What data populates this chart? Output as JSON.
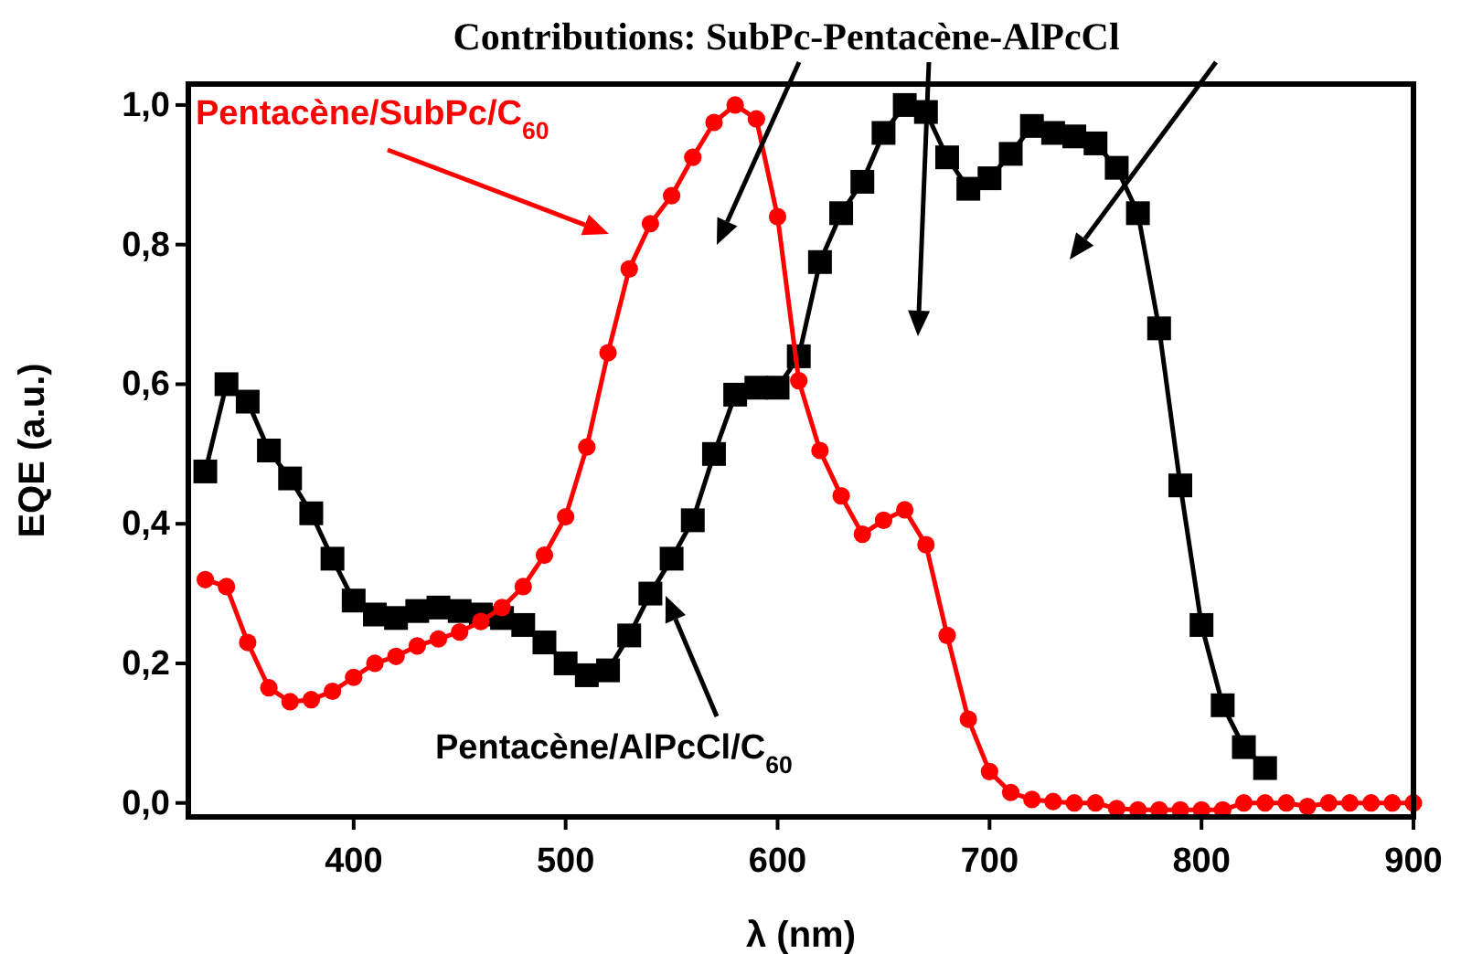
{
  "chart_data": {
    "type": "line",
    "title": "Contributions: SubPc-Pentacène-AlPcCl",
    "xlabel": "λ (nm)",
    "ylabel": "EQE (a.u.)",
    "xlim": [
      322,
      900
    ],
    "xticks": [
      400,
      500,
      600,
      700,
      800,
      900
    ],
    "ylim": [
      -0.02,
      1.03
    ],
    "yticks": [
      {
        "value": 0,
        "label": "0,0"
      },
      {
        "value": 0.2,
        "label": "0,2"
      },
      {
        "value": 0.4,
        "label": "0,4"
      },
      {
        "value": 0.6,
        "label": "0,6"
      },
      {
        "value": 0.8,
        "label": "0,8"
      },
      {
        "value": 1,
        "label": "1,0"
      }
    ],
    "grid": false,
    "legend": false,
    "line_style": "solid",
    "series": [
      {
        "name": "Pentacène/SubPc/C$_{60}$",
        "color": "#ff0000",
        "marker": "circle",
        "x": [
          330,
          340,
          350,
          360,
          370,
          380,
          390,
          400,
          410,
          420,
          430,
          440,
          450,
          460,
          470,
          480,
          490,
          500,
          510,
          520,
          530,
          540,
          550,
          560,
          570,
          580,
          590,
          600,
          610,
          620,
          630,
          640,
          650,
          660,
          670,
          680,
          690,
          700,
          710,
          720,
          730,
          740,
          750,
          760,
          770,
          780,
          790,
          800,
          810,
          820,
          830,
          840,
          850,
          860,
          870,
          880,
          890,
          900
        ],
        "values": [
          0.32,
          0.31,
          0.23,
          0.165,
          0.145,
          0.148,
          0.16,
          0.18,
          0.2,
          0.21,
          0.225,
          0.235,
          0.245,
          0.26,
          0.28,
          0.31,
          0.355,
          0.41,
          0.51,
          0.645,
          0.765,
          0.83,
          0.87,
          0.925,
          0.975,
          1.0,
          0.98,
          0.84,
          0.605,
          0.505,
          0.44,
          0.385,
          0.405,
          0.42,
          0.37,
          0.24,
          0.12,
          0.045,
          0.015,
          0.005,
          0.002,
          0,
          0,
          -0.008,
          -0.01,
          -0.01,
          -0.01,
          -0.01,
          -0.01,
          0,
          0,
          0,
          -0.005,
          0,
          0,
          0,
          0,
          0
        ]
      },
      {
        "name": "Pentacène/AlPcCl/C$_{60}$",
        "color": "#000000",
        "marker": "square",
        "x": [
          330,
          340,
          350,
          360,
          370,
          380,
          390,
          400,
          410,
          420,
          430,
          440,
          450,
          460,
          470,
          480,
          490,
          500,
          510,
          520,
          530,
          540,
          550,
          560,
          570,
          580,
          590,
          600,
          610,
          620,
          630,
          640,
          650,
          660,
          670,
          680,
          690,
          700,
          710,
          720,
          730,
          740,
          750,
          760,
          770,
          780,
          790,
          800,
          810,
          820,
          830
        ],
        "values": [
          0.475,
          0.6,
          0.575,
          0.505,
          0.465,
          0.415,
          0.35,
          0.29,
          0.27,
          0.265,
          0.275,
          0.28,
          0.275,
          0.27,
          0.265,
          0.255,
          0.23,
          0.2,
          0.183,
          0.19,
          0.24,
          0.3,
          0.35,
          0.405,
          0.5,
          0.585,
          0.595,
          0.595,
          0.64,
          0.775,
          0.845,
          0.89,
          0.96,
          1.0,
          0.99,
          0.925,
          0.88,
          0.895,
          0.93,
          0.97,
          0.96,
          0.955,
          0.945,
          0.91,
          0.845,
          0.68,
          0.455,
          0.255,
          0.14,
          0.08,
          0.05
        ]
      }
    ]
  }
}
